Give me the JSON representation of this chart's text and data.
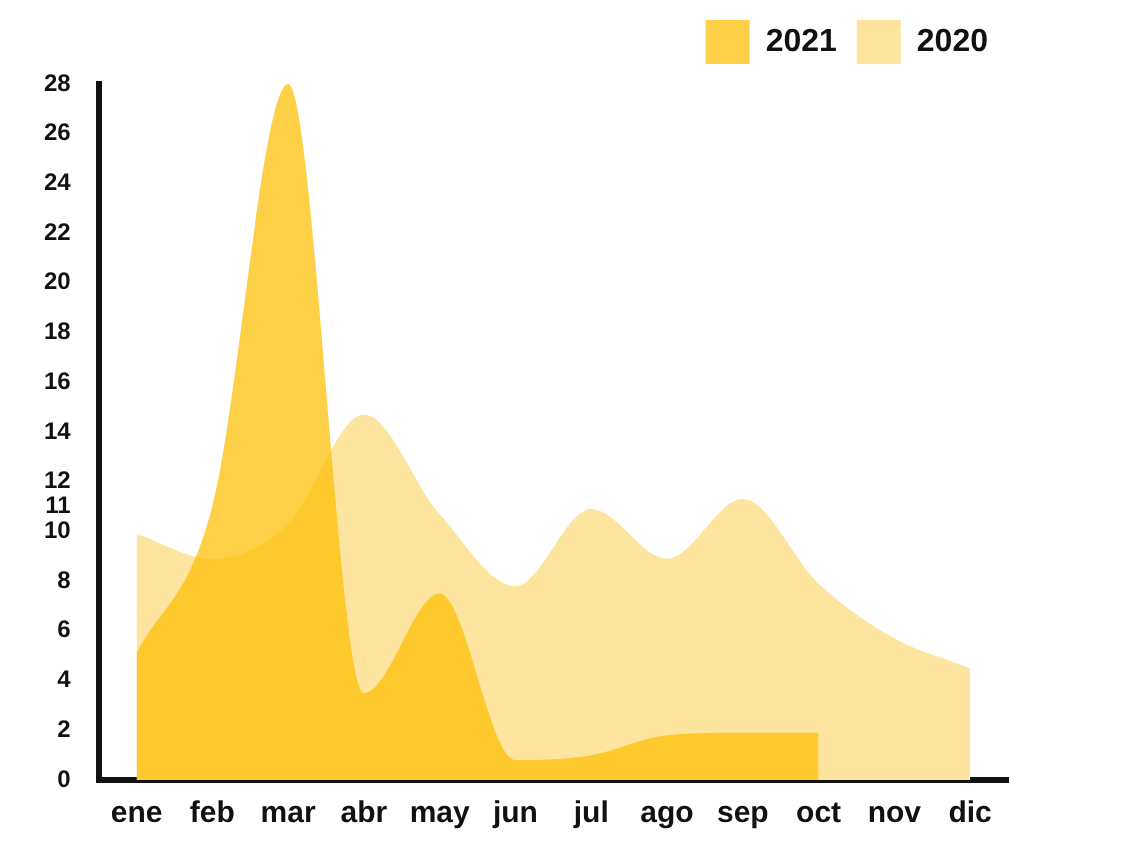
{
  "chart_data": {
    "type": "area",
    "categories": [
      "ene",
      "feb",
      "mar",
      "abr",
      "may",
      "jun",
      "jul",
      "ago",
      "sep",
      "oct",
      "nov",
      "dic"
    ],
    "series": [
      {
        "name": "2021",
        "color": "#fdbe00",
        "values": [
          5.1,
          11,
          28,
          3.5,
          7.5,
          0.8,
          1,
          1.8,
          1.9,
          1.9,
          null,
          null
        ]
      },
      {
        "name": "2020",
        "color": "#fde59f",
        "values": [
          9.9,
          8.9,
          10.3,
          14.7,
          10.7,
          7.8,
          10.9,
          8.9,
          11.3,
          7.9,
          5.7,
          4.5
        ]
      }
    ],
    "ylim": [
      0,
      28
    ],
    "yticks": [
      0,
      2,
      4,
      6,
      8,
      10,
      11,
      12,
      14,
      16,
      18,
      20,
      22,
      24,
      26,
      28
    ],
    "grid": false,
    "legend": "top right"
  }
}
